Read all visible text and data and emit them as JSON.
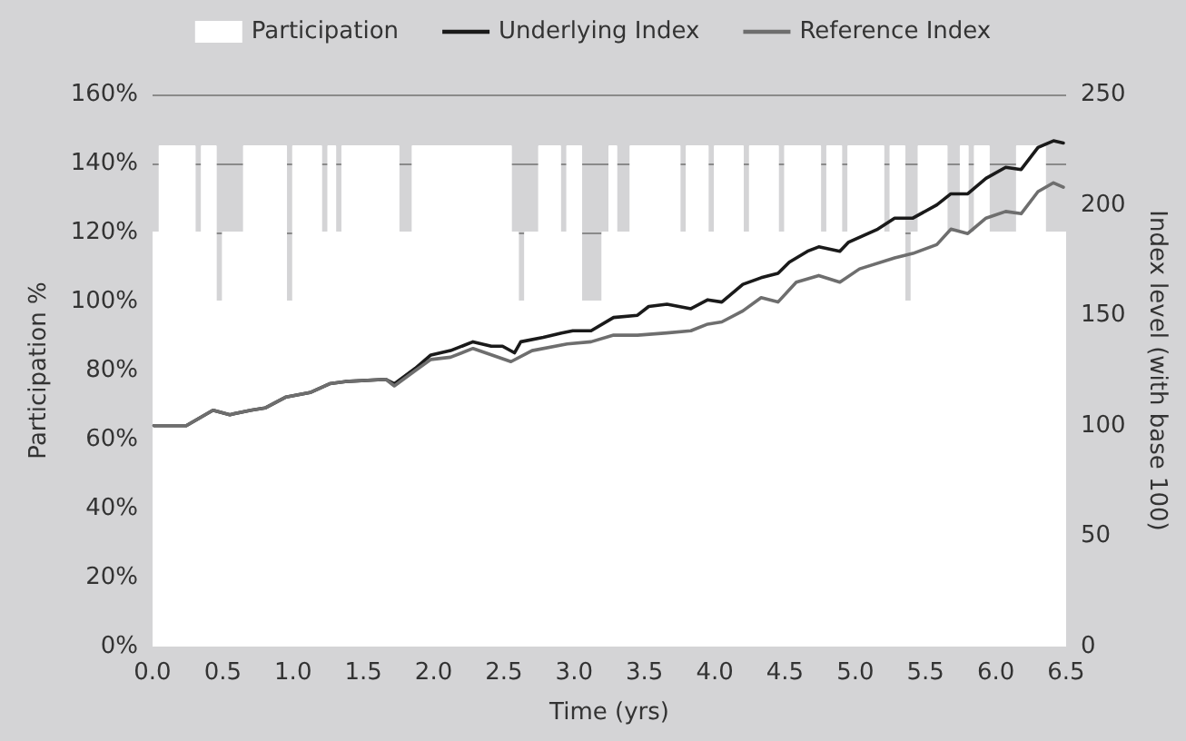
{
  "chart_data": {
    "type": "line",
    "xlabel": "Time (yrs)",
    "ylabel": "Participation %",
    "y2label": "Index level (with base 100)",
    "xlim": [
      0,
      6.5
    ],
    "xticks": [
      {
        "value": 0,
        "label": "0.0"
      },
      {
        "value": 0.5,
        "label": "0.5"
      },
      {
        "value": 1,
        "label": "1.0"
      },
      {
        "value": 1.5,
        "label": "1.5"
      },
      {
        "value": 2,
        "label": "2.0"
      },
      {
        "value": 2.5,
        "label": "2.5"
      },
      {
        "value": 3,
        "label": "3.0"
      },
      {
        "value": 3.5,
        "label": "3.5"
      },
      {
        "value": 4,
        "label": "4.0"
      },
      {
        "value": 4.5,
        "label": "4.5"
      },
      {
        "value": 5,
        "label": "5.0"
      },
      {
        "value": 5.5,
        "label": "5.5"
      },
      {
        "value": 6,
        "label": "6.0"
      },
      {
        "value": 6.5,
        "label": "6.5"
      }
    ],
    "ylim": [
      0,
      160
    ],
    "yticks": [
      {
        "value": 0,
        "label": "0%"
      },
      {
        "value": 20,
        "label": "20%"
      },
      {
        "value": 40,
        "label": "40%"
      },
      {
        "value": 60,
        "label": "60%"
      },
      {
        "value": 80,
        "label": "80%"
      },
      {
        "value": 100,
        "label": "100%"
      },
      {
        "value": 120,
        "label": "120%"
      },
      {
        "value": 140,
        "label": "140%"
      },
      {
        "value": 160,
        "label": "160%"
      }
    ],
    "y2lim": [
      0,
      250
    ],
    "y2ticks": [
      0,
      50,
      100,
      150,
      200,
      250
    ],
    "grid": "y",
    "legend": "top",
    "marker": "none",
    "line_style": "solid",
    "series": [
      {
        "name": "Participation",
        "type": "step",
        "color": "#ffffff",
        "x": [
          0,
          0.05,
          0.1,
          0.15,
          0.2,
          0.25,
          0.3,
          0.35,
          0.4,
          0.45,
          0.5,
          0.55,
          0.6,
          0.65,
          0.7,
          0.75,
          0.8,
          0.85,
          0.9,
          0.95,
          1,
          1.05,
          1.1,
          1.15,
          1.2,
          1.25,
          1.3,
          1.35,
          1.4,
          1.45,
          1.5,
          1.55,
          1.6,
          1.65,
          1.7,
          1.75,
          1.8,
          1.85,
          1.9,
          1.95,
          2,
          2.05,
          2.1,
          2.15,
          2.2,
          2.25,
          2.3,
          2.35,
          2.4,
          2.45,
          2.5,
          2.55,
          2.6,
          2.65,
          2.7,
          2.75,
          2.8,
          2.85,
          2.9,
          2.95,
          3,
          3.05,
          3.1,
          3.15,
          3.2,
          3.25,
          3.3,
          3.35,
          3.4,
          3.45,
          3.5,
          3.55,
          3.6,
          3.65,
          3.7,
          3.75,
          3.8,
          3.85,
          3.9,
          3.95,
          4,
          4.05,
          4.1,
          4.15,
          4.2,
          4.25,
          4.3,
          4.35,
          4.4,
          4.45,
          4.5,
          4.55,
          4.6,
          4.65,
          4.7,
          4.75,
          4.8,
          4.85,
          4.9,
          4.95,
          5,
          5.05,
          5.1,
          5.15,
          5.2,
          5.25,
          5.3,
          5.35,
          5.4,
          5.45,
          5.5,
          5.55,
          5.6,
          5.65,
          5.7,
          5.75,
          5.8,
          5.85,
          5.9,
          5.95,
          6,
          6.05,
          6.1,
          6.15,
          6.2,
          6.25,
          6.3,
          6.35,
          6.4,
          6.45,
          6.5
        ],
        "values": [
          120,
          145,
          145,
          145,
          145,
          145,
          120,
          145,
          145,
          100,
          120,
          120,
          120,
          145,
          145,
          145,
          145,
          145,
          145,
          100,
          145,
          145,
          145,
          145,
          120,
          145,
          120,
          145,
          145,
          145,
          145,
          145,
          145,
          145,
          145,
          120,
          120,
          145,
          145,
          145,
          145,
          145,
          145,
          145,
          145,
          145,
          145,
          145,
          145,
          145,
          145,
          120,
          100,
          120,
          120,
          145,
          145,
          145,
          120,
          145,
          145,
          100,
          100,
          100,
          120,
          145,
          120,
          120,
          145,
          145,
          145,
          145,
          145,
          145,
          145,
          120,
          145,
          145,
          145,
          120,
          145,
          145,
          145,
          145,
          120,
          145,
          145,
          145,
          145,
          120,
          145,
          145,
          145,
          145,
          145,
          120,
          145,
          145,
          120,
          145,
          145,
          145,
          145,
          145,
          120,
          145,
          145,
          100,
          120,
          145,
          145,
          145,
          145,
          120,
          120,
          145,
          120,
          145,
          145,
          120,
          120,
          120,
          120,
          145,
          145,
          145,
          145,
          120,
          120,
          120,
          120
        ]
      },
      {
        "name": "Underlying Index",
        "axis": "y2",
        "color": "#1a1a1a",
        "x": [
          0.01,
          0.24,
          0.43,
          0.55,
          0.7,
          0.8,
          0.95,
          1.12,
          1.26,
          1.37,
          1.66,
          1.72,
          1.87,
          1.98,
          2.12,
          2.28,
          2.41,
          2.49,
          2.575,
          2.62,
          2.78,
          2.91,
          2.99,
          3.12,
          3.28,
          3.45,
          3.53,
          3.66,
          3.83,
          3.95,
          4.05,
          4.2,
          4.33,
          4.45,
          4.53,
          4.66,
          4.74,
          4.89,
          4.95,
          5.16,
          5.28,
          5.41,
          5.58,
          5.68,
          5.8,
          5.93,
          6.07,
          6.18,
          6.3,
          6.41,
          6.48
        ],
        "values": [
          100,
          100,
          107,
          105,
          107,
          108,
          113,
          115,
          119,
          120,
          121,
          119,
          126,
          132,
          134,
          138,
          136,
          136,
          133,
          138,
          140,
          142,
          143,
          143,
          149,
          150,
          154,
          155,
          153,
          157,
          156,
          164,
          167,
          169,
          174,
          179,
          181,
          179,
          183,
          189,
          194,
          194,
          200,
          205,
          205,
          212,
          217,
          216,
          226,
          229,
          228
        ]
      },
      {
        "name": "Reference Index",
        "axis": "y2",
        "color": "#6e6e6e",
        "x": [
          0.01,
          0.24,
          0.43,
          0.55,
          0.7,
          0.8,
          0.95,
          1.12,
          1.26,
          1.37,
          1.66,
          1.72,
          1.87,
          1.98,
          2.12,
          2.28,
          2.55,
          2.7,
          2.95,
          3.12,
          3.28,
          3.45,
          3.66,
          3.83,
          3.95,
          4.05,
          4.2,
          4.33,
          4.45,
          4.58,
          4.74,
          4.89,
          5.03,
          5.28,
          5.41,
          5.58,
          5.68,
          5.8,
          5.93,
          6.07,
          6.18,
          6.3,
          6.41,
          6.48
        ],
        "values": [
          100,
          100,
          107,
          105,
          107,
          108,
          113,
          115,
          119,
          120,
          121,
          118,
          125,
          130,
          131,
          135,
          129,
          134,
          137,
          138,
          141,
          141,
          142,
          143,
          146,
          147,
          152,
          158,
          156,
          165,
          168,
          165,
          171,
          176,
          178,
          182,
          189,
          187,
          194,
          197,
          196,
          206,
          210,
          208
        ]
      }
    ]
  }
}
